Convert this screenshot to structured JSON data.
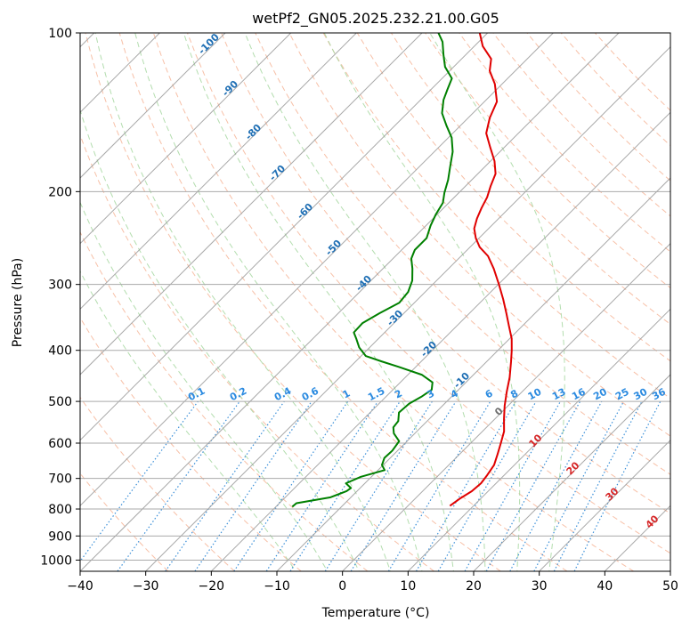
{
  "chart_data": {
    "type": "line",
    "diagram": "skew-t log-p",
    "title": "wetPf2_GN05.2025.232.21.00.G05",
    "xlabel": "Temperature (°C)",
    "ylabel": "Pressure (hPa)",
    "xlim": [
      -40,
      50
    ],
    "ylim": [
      1050,
      100
    ],
    "y_scale": "log",
    "grid": true,
    "x_ticks": [
      "−40",
      "−30",
      "−20",
      "−10",
      "0",
      "10",
      "20",
      "30",
      "40",
      "50"
    ],
    "y_ticks": [
      "100",
      "200",
      "300",
      "400",
      "500",
      "600",
      "700",
      "800",
      "900",
      "1000"
    ],
    "y_tick_values": [
      100,
      200,
      300,
      400,
      500,
      600,
      700,
      800,
      900,
      1000
    ],
    "colors": {
      "temperature": "#e00000",
      "dewpoint": "#008000",
      "dry_adiabat": "#f4a582",
      "moist_adiabat": "#a6d7a0",
      "mixing_ratio": "#3a8fd8",
      "isotherm": "#9a9a9a",
      "ann_isotherm": "#1f6fb4",
      "ann_mixing": "#2a8ae0",
      "ann_red": "#d62728",
      "ann_gray": "#6e6e6e"
    },
    "series": [
      {
        "name": "",
        "color": "#e00000",
        "points": [
          [
            789,
            6.4
          ],
          [
            765,
            6.8
          ],
          [
            740,
            7.5
          ],
          [
            715,
            7.7
          ],
          [
            690,
            7.4
          ],
          [
            660,
            6.9
          ],
          [
            630,
            5.8
          ],
          [
            600,
            4.6
          ],
          [
            570,
            3.3
          ],
          [
            540,
            1.4
          ],
          [
            510,
            -0.5
          ],
          [
            480,
            -2.3
          ],
          [
            450,
            -4.1
          ],
          [
            420,
            -6.3
          ],
          [
            400,
            -7.9
          ],
          [
            380,
            -9.7
          ],
          [
            360,
            -12.0
          ],
          [
            340,
            -14.4
          ],
          [
            320,
            -17.0
          ],
          [
            300,
            -19.9
          ],
          [
            280,
            -23.1
          ],
          [
            265,
            -25.9
          ],
          [
            255,
            -28.5
          ],
          [
            245,
            -30.5
          ],
          [
            235,
            -32.2
          ],
          [
            225,
            -33.3
          ],
          [
            215,
            -34.2
          ],
          [
            205,
            -35.0
          ],
          [
            195,
            -36.2
          ],
          [
            185,
            -37.3
          ],
          [
            175,
            -39.4
          ],
          [
            165,
            -42.1
          ],
          [
            155,
            -44.9
          ],
          [
            145,
            -46.7
          ],
          [
            135,
            -48.1
          ],
          [
            125,
            -51.1
          ],
          [
            118,
            -53.9
          ],
          [
            112,
            -55.5
          ],
          [
            106,
            -58.7
          ],
          [
            100,
            -61.2
          ]
        ]
      },
      {
        "name": "",
        "color": "#008000",
        "points": [
          [
            792,
            -17.5
          ],
          [
            780,
            -17.4
          ],
          [
            760,
            -13.1
          ],
          [
            740,
            -11.6
          ],
          [
            730,
            -11.4
          ],
          [
            715,
            -12.9
          ],
          [
            695,
            -11.6
          ],
          [
            675,
            -9.0
          ],
          [
            660,
            -10.2
          ],
          [
            640,
            -10.9
          ],
          [
            620,
            -10.8
          ],
          [
            595,
            -11.2
          ],
          [
            575,
            -13.2
          ],
          [
            560,
            -14.2
          ],
          [
            545,
            -14.4
          ],
          [
            525,
            -15.6
          ],
          [
            505,
            -15.4
          ],
          [
            490,
            -14.6
          ],
          [
            475,
            -14.1
          ],
          [
            460,
            -15.1
          ],
          [
            445,
            -17.9
          ],
          [
            430,
            -22.6
          ],
          [
            420,
            -26.0
          ],
          [
            410,
            -29.3
          ],
          [
            395,
            -31.6
          ],
          [
            380,
            -33.4
          ],
          [
            370,
            -34.7
          ],
          [
            355,
            -34.8
          ],
          [
            340,
            -33.7
          ],
          [
            325,
            -32.3
          ],
          [
            310,
            -32.6
          ],
          [
            295,
            -33.7
          ],
          [
            280,
            -35.5
          ],
          [
            268,
            -37.2
          ],
          [
            258,
            -38.0
          ],
          [
            245,
            -38.0
          ],
          [
            232,
            -39.3
          ],
          [
            221,
            -40.2
          ],
          [
            210,
            -40.9
          ],
          [
            201,
            -42.2
          ],
          [
            190,
            -43.6
          ],
          [
            180,
            -45.2
          ],
          [
            168,
            -47.2
          ],
          [
            158,
            -49.5
          ],
          [
            150,
            -52.1
          ],
          [
            142,
            -54.7
          ],
          [
            134,
            -56.5
          ],
          [
            128,
            -57.5
          ],
          [
            122,
            -58.5
          ],
          [
            116,
            -61.3
          ],
          [
            110,
            -63.4
          ],
          [
            104,
            -65.5
          ],
          [
            100,
            -67.5
          ]
        ]
      }
    ],
    "dry_adiabats_theta_c": [
      -30,
      -20,
      -10,
      0,
      10,
      20,
      30,
      40,
      50,
      60,
      70,
      80,
      90,
      100,
      110,
      120,
      130,
      140,
      150,
      160,
      170
    ],
    "moist_adiabats_c": [
      -10,
      -5,
      0,
      5,
      10,
      15,
      20,
      25,
      30
    ],
    "mixing_ratio_lines": [
      "0.1",
      "0.2",
      "0.4",
      "0.6",
      "1",
      "1.5",
      "2",
      "3",
      "4",
      "6",
      "8",
      "10",
      "13",
      "16",
      "20",
      "25",
      "30",
      "36"
    ],
    "mixing_ratio_values": [
      0.1,
      0.2,
      0.4,
      0.6,
      1,
      1.5,
      2,
      3,
      4,
      6,
      8,
      10,
      13,
      16,
      20,
      25,
      30,
      36
    ],
    "isotherm_labels_left": [
      "-100",
      "-90",
      "-80",
      "-70",
      "-60",
      "-50",
      "-40",
      "-30",
      "-20",
      "-10"
    ],
    "isotherm_label_values": [
      -100,
      -90,
      -80,
      -70,
      -60,
      -50,
      -40,
      -30,
      -20,
      -10
    ],
    "isotherm_labels_right": [
      "0",
      "10",
      "20",
      "30",
      "40"
    ],
    "isotherm_right_values": [
      0,
      10,
      20,
      30,
      40
    ]
  }
}
